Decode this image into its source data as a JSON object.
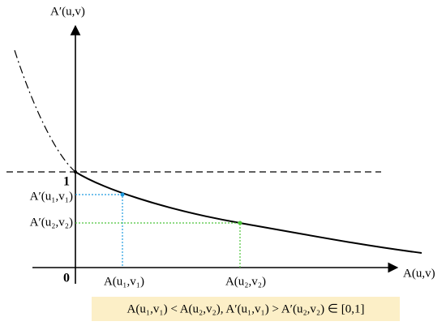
{
  "axes": {
    "y_label": "A′(u,v)",
    "x_label": "A(u,v)",
    "one_label": "1",
    "origin_label": "0"
  },
  "points": [
    {
      "y_label": "A′(u₁,v₁)",
      "x_label": "A(u₁,v₁)"
    },
    {
      "y_label": "A′(u₂,v₂)",
      "x_label": "A(u₂,v₂)"
    }
  ],
  "formula": "A(u₁,v₁) < A(u₂,v₂), A′(u₁,v₁) > A′(u₂,v₂) ∈ [0,1]"
}
